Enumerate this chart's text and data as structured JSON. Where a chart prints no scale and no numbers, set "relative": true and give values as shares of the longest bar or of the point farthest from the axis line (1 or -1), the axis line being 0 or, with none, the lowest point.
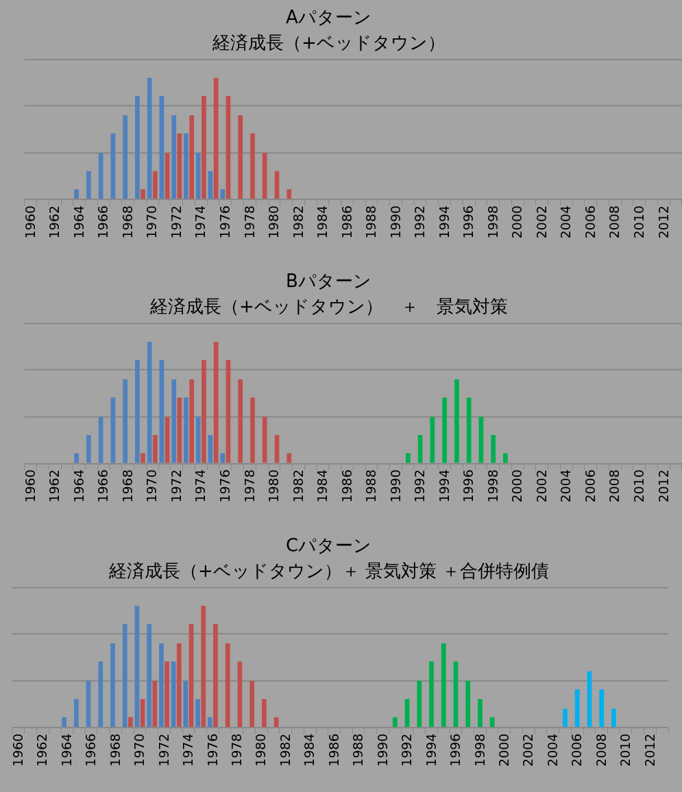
{
  "chart_data": [
    {
      "type": "bar",
      "title": "Aパターン",
      "subtitle": "経済成長（+ベッドタウン）",
      "relative": true,
      "tick_labels": "x",
      "ref_lines": [
        {
          "axis": "y",
          "value": 0.38,
          "color": "#888888"
        },
        {
          "axis": "y",
          "value": 0.77,
          "color": "#888888"
        },
        {
          "axis": "y",
          "value": 1.15,
          "color": "#888888"
        }
      ],
      "categories": [
        "1960",
        null,
        "1962",
        null,
        "1964",
        null,
        "1966",
        null,
        "1968",
        null,
        "1970",
        null,
        "1972",
        null,
        "1974",
        null,
        "1976",
        null,
        "1978",
        null,
        "1980",
        null,
        "1982",
        null,
        "1984",
        null,
        "1986",
        null,
        "1988",
        null,
        "1990",
        null,
        "1992",
        null,
        "1994",
        null,
        "1996",
        null,
        "1998",
        null,
        "2000",
        null,
        "2002",
        null,
        "2004",
        null,
        "2006",
        null,
        "2008",
        null,
        "2010",
        null,
        "2012",
        null
      ],
      "series": [
        {
          "color": "#4f81bd",
          "values": [
            null,
            null,
            null,
            null,
            0.08,
            0.23,
            0.38,
            0.54,
            0.69,
            0.85,
            1,
            0.85,
            0.69,
            0.54,
            0.38,
            0.23,
            0.08,
            null,
            null,
            null,
            null,
            null,
            null,
            null,
            null,
            null,
            null,
            null,
            null,
            null,
            null,
            null,
            null,
            null,
            null,
            null,
            null,
            null,
            null,
            null,
            null,
            null,
            null,
            null,
            null,
            null,
            null,
            null,
            null,
            null,
            null,
            null,
            null,
            null
          ]
        },
        {
          "color": "#c0504d",
          "values": [
            null,
            null,
            null,
            null,
            null,
            null,
            null,
            null,
            null,
            0.08,
            0.23,
            0.38,
            0.54,
            0.69,
            0.85,
            1,
            0.85,
            0.69,
            0.54,
            0.38,
            0.23,
            0.08,
            null,
            null,
            null,
            null,
            null,
            null,
            null,
            null,
            null,
            null,
            null,
            null,
            null,
            null,
            null,
            null,
            null,
            null,
            null,
            null,
            null,
            null,
            null,
            null,
            null,
            null,
            null,
            null,
            null,
            null,
            null,
            null
          ]
        }
      ]
    },
    {
      "type": "bar",
      "title": "Bパターン",
      "subtitle": "経済成長（+ベッドタウン）　＋　景気対策",
      "relative": true,
      "tick_labels": "x",
      "ref_lines": [
        {
          "axis": "y",
          "value": 0.38,
          "color": "#888888"
        },
        {
          "axis": "y",
          "value": 0.77,
          "color": "#888888"
        },
        {
          "axis": "y",
          "value": 1.15,
          "color": "#888888"
        }
      ],
      "categories": [
        "1960",
        null,
        "1962",
        null,
        "1964",
        null,
        "1966",
        null,
        "1968",
        null,
        "1970",
        null,
        "1972",
        null,
        "1974",
        null,
        "1976",
        null,
        "1978",
        null,
        "1980",
        null,
        "1982",
        null,
        "1984",
        null,
        "1986",
        null,
        "1988",
        null,
        "1990",
        null,
        "1992",
        null,
        "1994",
        null,
        "1996",
        null,
        "1998",
        null,
        "2000",
        null,
        "2002",
        null,
        "2004",
        null,
        "2006",
        null,
        "2008",
        null,
        "2010",
        null,
        "2012",
        null
      ],
      "series": [
        {
          "color": "#4f81bd",
          "values": [
            null,
            null,
            null,
            null,
            0.08,
            0.23,
            0.38,
            0.54,
            0.69,
            0.85,
            1,
            0.85,
            0.69,
            0.54,
            0.38,
            0.23,
            0.08,
            null,
            null,
            null,
            null,
            null,
            null,
            null,
            null,
            null,
            null,
            null,
            null,
            null,
            null,
            null,
            null,
            null,
            null,
            null,
            null,
            null,
            null,
            null,
            null,
            null,
            null,
            null,
            null,
            null,
            null,
            null,
            null,
            null,
            null,
            null,
            null,
            null
          ]
        },
        {
          "color": "#c0504d",
          "values": [
            null,
            null,
            null,
            null,
            null,
            null,
            null,
            null,
            null,
            0.08,
            0.23,
            0.38,
            0.54,
            0.69,
            0.85,
            1,
            0.85,
            0.69,
            0.54,
            0.38,
            0.23,
            0.08,
            null,
            null,
            null,
            null,
            null,
            null,
            null,
            null,
            null,
            null,
            null,
            null,
            null,
            null,
            null,
            null,
            null,
            null,
            null,
            null,
            null,
            null,
            null,
            null,
            null,
            null,
            null,
            null,
            null,
            null,
            null,
            null
          ]
        },
        {
          "color": "#00b050",
          "values": [
            null,
            null,
            null,
            null,
            null,
            null,
            null,
            null,
            null,
            null,
            null,
            null,
            null,
            null,
            null,
            null,
            null,
            null,
            null,
            null,
            null,
            null,
            null,
            null,
            null,
            null,
            null,
            null,
            null,
            null,
            null,
            0.08,
            0.23,
            0.38,
            0.54,
            0.69,
            0.54,
            0.38,
            0.23,
            0.08,
            null,
            null,
            null,
            null,
            null,
            null,
            null,
            null,
            null,
            null,
            null,
            null,
            null,
            null
          ]
        }
      ]
    },
    {
      "type": "bar",
      "title": "Cパターン",
      "subtitle": "経済成長（+ベッドタウン）＋ 景気対策 ＋合併特例債",
      "relative": true,
      "tick_labels": "x",
      "ref_lines": [
        {
          "axis": "y",
          "value": 0.38,
          "color": "#888888"
        },
        {
          "axis": "y",
          "value": 0.77,
          "color": "#888888"
        },
        {
          "axis": "y",
          "value": 1.15,
          "color": "#888888"
        }
      ],
      "categories": [
        "1960",
        null,
        "1962",
        null,
        "1964",
        null,
        "1966",
        null,
        "1968",
        null,
        "1970",
        null,
        "1972",
        null,
        "1974",
        null,
        "1976",
        null,
        "1978",
        null,
        "1980",
        null,
        "1982",
        null,
        "1984",
        null,
        "1986",
        null,
        "1988",
        null,
        "1990",
        null,
        "1992",
        null,
        "1994",
        null,
        "1996",
        null,
        "1998",
        null,
        "2000",
        null,
        "2002",
        null,
        "2004",
        null,
        "2006",
        null,
        "2008",
        null,
        "2010",
        null,
        "2012",
        null
      ],
      "series": [
        {
          "color": "#4f81bd",
          "values": [
            null,
            null,
            null,
            null,
            0.08,
            0.23,
            0.38,
            0.54,
            0.69,
            0.85,
            1,
            0.85,
            0.69,
            0.54,
            0.38,
            0.23,
            0.08,
            null,
            null,
            null,
            null,
            null,
            null,
            null,
            null,
            null,
            null,
            null,
            null,
            null,
            null,
            null,
            null,
            null,
            null,
            null,
            null,
            null,
            null,
            null,
            null,
            null,
            null,
            null,
            null,
            null,
            null,
            null,
            null,
            null,
            null,
            null,
            null,
            null
          ]
        },
        {
          "color": "#c0504d",
          "values": [
            null,
            null,
            null,
            null,
            null,
            null,
            null,
            null,
            null,
            0.08,
            0.23,
            0.38,
            0.54,
            0.69,
            0.85,
            1,
            0.85,
            0.69,
            0.54,
            0.38,
            0.23,
            0.08,
            null,
            null,
            null,
            null,
            null,
            null,
            null,
            null,
            null,
            null,
            null,
            null,
            null,
            null,
            null,
            null,
            null,
            null,
            null,
            null,
            null,
            null,
            null,
            null,
            null,
            null,
            null,
            null,
            null,
            null,
            null,
            null
          ]
        },
        {
          "color": "#00b050",
          "values": [
            null,
            null,
            null,
            null,
            null,
            null,
            null,
            null,
            null,
            null,
            null,
            null,
            null,
            null,
            null,
            null,
            null,
            null,
            null,
            null,
            null,
            null,
            null,
            null,
            null,
            null,
            null,
            null,
            null,
            null,
            null,
            0.08,
            0.23,
            0.38,
            0.54,
            0.69,
            0.54,
            0.38,
            0.23,
            0.08,
            null,
            null,
            null,
            null,
            null,
            null,
            null,
            null,
            null,
            null,
            null,
            null,
            null,
            null
          ]
        },
        {
          "color": "#00b0f0",
          "values": [
            null,
            null,
            null,
            null,
            null,
            null,
            null,
            null,
            null,
            null,
            null,
            null,
            null,
            null,
            null,
            null,
            null,
            null,
            null,
            null,
            null,
            null,
            null,
            null,
            null,
            null,
            null,
            null,
            null,
            null,
            null,
            null,
            null,
            null,
            null,
            null,
            null,
            null,
            null,
            null,
            null,
            null,
            null,
            null,
            null,
            0.15,
            0.31,
            0.46,
            0.31,
            0.15,
            null,
            null,
            null,
            null
          ]
        }
      ]
    }
  ]
}
